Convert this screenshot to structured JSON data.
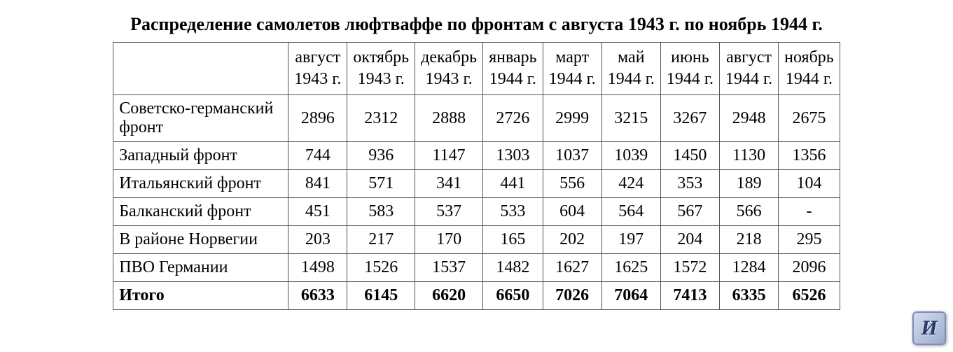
{
  "title": "Распределение самолетов люфтваффе по фронтам с августа 1943 г. по ноябрь 1944 г.",
  "table": {
    "columns": [
      "",
      "август\n1943 г.",
      "октябрь\n1943 г.",
      "декабрь\n1943 г.",
      "январь\n1944 г.",
      "март\n1944 г.",
      "май\n1944 г.",
      "июнь\n1944 г.",
      "август\n1944 г.",
      "ноябрь\n1944 г."
    ],
    "rows": [
      {
        "label": "Советско-германский фронт",
        "values": [
          "2896",
          "2312",
          "2888",
          "2726",
          "2999",
          "3215",
          "3267",
          "2948",
          "2675"
        ]
      },
      {
        "label": "Западный фронт",
        "values": [
          "744",
          "936",
          "1147",
          "1303",
          "1037",
          "1039",
          "1450",
          "1130",
          "1356"
        ]
      },
      {
        "label": "Итальянский фронт",
        "values": [
          "841",
          "571",
          "341",
          "441",
          "556",
          "424",
          "353",
          "189",
          "104"
        ]
      },
      {
        "label": "Балканский фронт",
        "values": [
          "451",
          "583",
          "537",
          "533",
          "604",
          "564",
          "567",
          "566",
          "-"
        ]
      },
      {
        "label": "В районе Норвегии",
        "values": [
          "203",
          "217",
          "170",
          "165",
          "202",
          "197",
          "204",
          "218",
          "295"
        ]
      },
      {
        "label": "ПВО Германии",
        "values": [
          "1498",
          "1526",
          "1537",
          "1482",
          "1627",
          "1625",
          "1572",
          "1284",
          "2096"
        ]
      }
    ],
    "total": {
      "label": "Итого",
      "values": [
        "6633",
        "6145",
        "6620",
        "6650",
        "7026",
        "7064",
        "7413",
        "6335",
        "6526"
      ]
    }
  },
  "style": {
    "title_fontsize": 26,
    "cell_fontsize": 24,
    "border_color": "#555555",
    "background_color": "#ffffff",
    "text_color": "#000000"
  },
  "logo": {
    "glyph": "И"
  }
}
